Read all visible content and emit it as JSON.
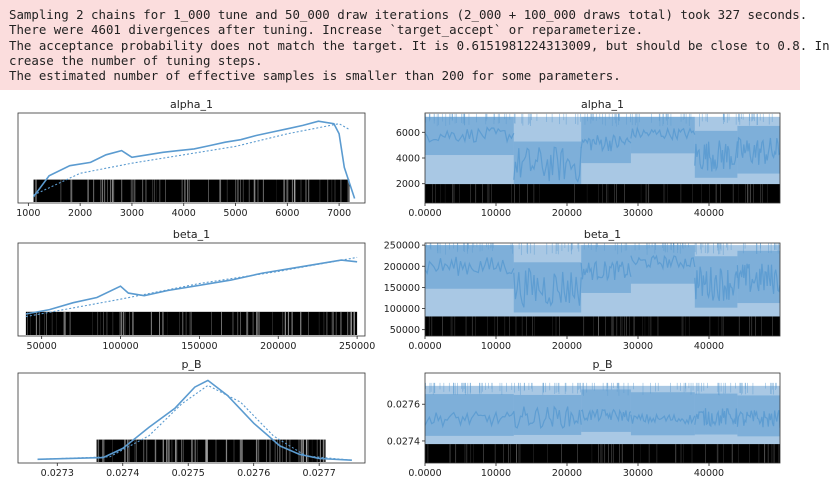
{
  "warning_lines": [
    "Sampling 2 chains for 1_000 tune and 50_000 draw iterations (2_000 + 100_000 draws total) took 327 seconds.",
    "There were 4601 divergences after tuning. Increase `target_accept` or reparameterize.",
    "The acceptance probability does not match the target. It is 0.6151981224313009, but should be close to 0.8. In",
    "crease the number of tuning steps.",
    "The estimated number of effective samples is smaller than 200 for some parameters."
  ],
  "colors": {
    "line": "#5b9bd0",
    "fill": "#a9c8e4",
    "warning_bg": "#fbdddd"
  },
  "chart_data": [
    {
      "type": "line",
      "title": "alpha_1",
      "xlim": [
        800,
        7500
      ],
      "xticks": [
        1000,
        2000,
        3000,
        4000,
        5000,
        6000,
        7000
      ],
      "series": [
        {
          "style": "solid",
          "x": [
            1100,
            1400,
            1800,
            2200,
            2500,
            2800,
            3000,
            3300,
            3600,
            3900,
            4200,
            4500,
            4800,
            5100,
            5400,
            5700,
            6000,
            6300,
            6600,
            6900,
            7000,
            7100,
            7300
          ],
          "y": [
            0.05,
            0.3,
            0.42,
            0.46,
            0.55,
            0.6,
            0.52,
            0.55,
            0.58,
            0.6,
            0.62,
            0.66,
            0.7,
            0.73,
            0.78,
            0.82,
            0.86,
            0.9,
            0.95,
            0.92,
            0.8,
            0.4,
            0.03
          ]
        },
        {
          "style": "dotted",
          "x": [
            1100,
            2000,
            3000,
            4000,
            5000,
            6000,
            7000,
            7200
          ],
          "y": [
            0.07,
            0.33,
            0.45,
            0.55,
            0.65,
            0.8,
            0.92,
            0.85
          ]
        }
      ],
      "rug_range": [
        1100,
        7200
      ]
    },
    {
      "type": "line",
      "title": "beta_1",
      "xlim": [
        35000,
        255000
      ],
      "xticks": [
        50000,
        100000,
        150000,
        200000,
        250000
      ],
      "series": [
        {
          "style": "solid",
          "x": [
            40000,
            55000,
            70000,
            85000,
            100000,
            105000,
            115000,
            130000,
            150000,
            170000,
            190000,
            210000,
            230000,
            240000,
            250000
          ],
          "y": [
            0.23,
            0.28,
            0.36,
            0.42,
            0.55,
            0.47,
            0.44,
            0.5,
            0.56,
            0.62,
            0.7,
            0.76,
            0.82,
            0.85,
            0.83
          ]
        },
        {
          "style": "dotted",
          "x": [
            40000,
            70000,
            100000,
            150000,
            200000,
            250000
          ],
          "y": [
            0.2,
            0.3,
            0.4,
            0.58,
            0.72,
            0.88
          ]
        }
      ],
      "rug_range": [
        40000,
        250000
      ]
    },
    {
      "type": "line",
      "title": "p_B",
      "xlim": [
        0.02724,
        0.02777
      ],
      "xticks": [
        0.0273,
        0.0274,
        0.0275,
        0.0276,
        0.0277
      ],
      "series": [
        {
          "style": "solid",
          "x": [
            0.02727,
            0.02737,
            0.0274,
            0.02744,
            0.02748,
            0.02751,
            0.02753,
            0.02756,
            0.0276,
            0.02764,
            0.02767,
            0.0277,
            0.02775
          ],
          "y": [
            0.02,
            0.04,
            0.15,
            0.4,
            0.63,
            0.88,
            0.96,
            0.78,
            0.45,
            0.18,
            0.08,
            0.03,
            0.01
          ]
        },
        {
          "style": "dotted",
          "x": [
            0.02727,
            0.02738,
            0.02744,
            0.02749,
            0.02753,
            0.02758,
            0.02763,
            0.02768,
            0.02775
          ],
          "y": [
            0.02,
            0.05,
            0.3,
            0.68,
            0.9,
            0.7,
            0.3,
            0.06,
            0.01
          ]
        }
      ],
      "rug_range": [
        0.02736,
        0.02771
      ]
    },
    {
      "type": "area",
      "title": "alpha_1",
      "xlim": [
        0,
        50000
      ],
      "ylim": [
        500,
        7500
      ],
      "xticks": [
        0,
        10000,
        20000,
        30000,
        40000
      ],
      "yticks": [
        2000,
        4000,
        6000
      ],
      "band": [
        1500,
        7200
      ],
      "segments": [
        [
          0,
          12500,
          5800,
          0.1
        ],
        [
          12500,
          22000,
          3500,
          0.25
        ],
        [
          22000,
          29000,
          5200,
          0.12
        ],
        [
          29000,
          38000,
          5900,
          0.08
        ],
        [
          38000,
          44000,
          4200,
          0.22
        ],
        [
          44000,
          50000,
          4500,
          0.2
        ]
      ]
    },
    {
      "type": "area",
      "title": "beta_1",
      "xlim": [
        0,
        50000
      ],
      "ylim": [
        35000,
        255000
      ],
      "xticks": [
        0,
        10000,
        20000,
        30000,
        40000
      ],
      "yticks": [
        50000,
        100000,
        150000,
        200000,
        250000
      ],
      "band": [
        60000,
        250000
      ],
      "segments": [
        [
          0,
          12500,
          200000,
          0.12
        ],
        [
          12500,
          22000,
          150000,
          0.25
        ],
        [
          22000,
          29000,
          190000,
          0.12
        ],
        [
          29000,
          38000,
          210000,
          0.08
        ],
        [
          38000,
          44000,
          160000,
          0.22
        ],
        [
          44000,
          50000,
          170000,
          0.2
        ]
      ]
    },
    {
      "type": "area",
      "title": "p_B",
      "xlim": [
        0,
        50000
      ],
      "ylim": [
        0.02728,
        0.02777
      ],
      "xticks": [
        0,
        10000,
        20000,
        30000,
        40000
      ],
      "yticks": [
        0.0274,
        0.0276
      ],
      "band": [
        0.02737,
        0.0277
      ],
      "segments": [
        [
          0,
          12500,
          0.02752,
          0.12
        ],
        [
          12500,
          22000,
          0.02753,
          0.18
        ],
        [
          22000,
          29000,
          0.02754,
          0.1
        ],
        [
          29000,
          38000,
          0.02752,
          0.08
        ],
        [
          38000,
          44000,
          0.02753,
          0.15
        ],
        [
          44000,
          50000,
          0.02752,
          0.15
        ]
      ]
    }
  ]
}
